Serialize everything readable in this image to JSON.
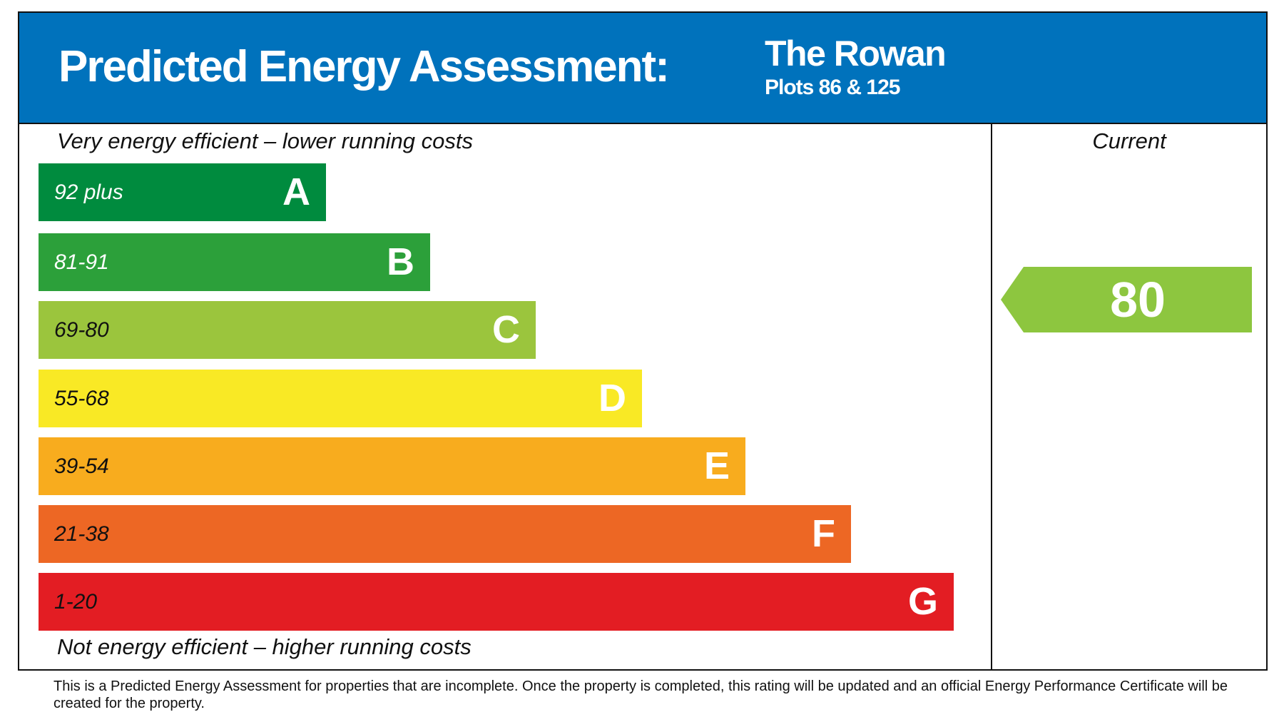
{
  "header": {
    "title": "Predicted Energy Assessment:",
    "property": "The Rowan",
    "plots": "Plots 86 & 125",
    "color": "#0072bc"
  },
  "labels": {
    "top": "Very energy efficient – lower running costs",
    "bottom": "Not energy efficient – higher running costs",
    "current_header": "Current"
  },
  "chart_data": {
    "type": "bar",
    "bands": [
      {
        "letter": "A",
        "range": "92 plus",
        "color": "#008b3e",
        "text_color": "#ffffff"
      },
      {
        "letter": "B",
        "range": "81-91",
        "color": "#2ca03a",
        "text_color": "#ffffff"
      },
      {
        "letter": "C",
        "range": "69-80",
        "color": "#9bc53d",
        "text_color": "#111111"
      },
      {
        "letter": "D",
        "range": "55-68",
        "color": "#f9e925",
        "text_color": "#111111"
      },
      {
        "letter": "E",
        "range": "39-54",
        "color": "#f8ac1e",
        "text_color": "#111111"
      },
      {
        "letter": "F",
        "range": "21-38",
        "color": "#ed6724",
        "text_color": "#111111"
      },
      {
        "letter": "G",
        "range": "1-20",
        "color": "#e31d23",
        "text_color": "#111111"
      }
    ],
    "current": {
      "value": "80",
      "band": "C",
      "color": "#8dc63f"
    }
  },
  "footer": "This is a Predicted Energy Assessment for properties that are incomplete. Once the property is completed, this rating will be updated and an official Energy Performance Certificate will be created for the property."
}
